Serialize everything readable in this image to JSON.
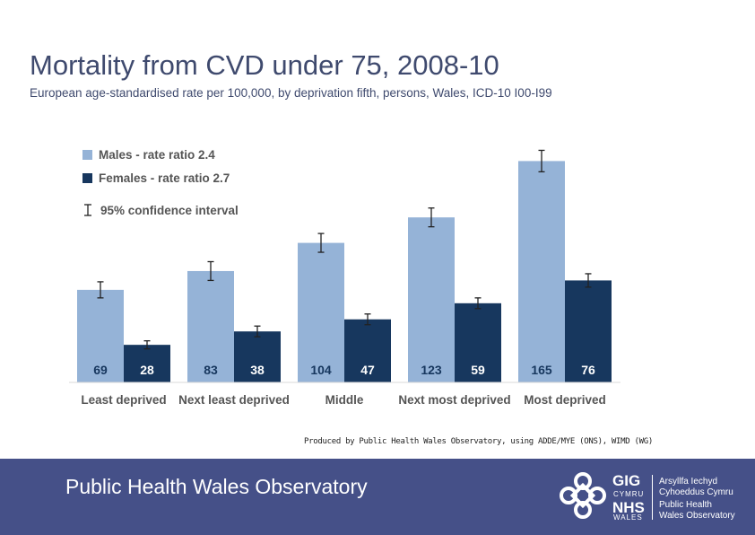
{
  "page": {
    "title": "Mortality from CVD under 75, 2008-10",
    "subtitle": "European  age-standardised rate per 100,000, by deprivation fifth, persons, Wales, ICD-10 I00-I99",
    "credit": "Produced by Public Health Wales Observatory, using ADDE/MYE (ONS), WIMD (WG)",
    "footer_title": "Public Health Wales Observatory",
    "logo": {
      "gig": "GIG",
      "cymru": "CYMRU",
      "nhs": "NHS",
      "wales": "WALES",
      "lines": [
        "Arsyllfa Iechyd",
        "Cyhoeddus Cymru",
        "Public Health",
        "Wales Observatory"
      ]
    }
  },
  "colors": {
    "males": "#95b3d7",
    "females": "#17375e",
    "footer": "#455088",
    "title": "#3f4a6e"
  },
  "chart_data": {
    "type": "bar",
    "categories": [
      "Least deprived",
      "Next least deprived",
      "Middle",
      "Next most deprived",
      "Most deprived"
    ],
    "series": [
      {
        "name": "Males - rate ratio 2.4",
        "values": [
          69,
          83,
          104,
          123,
          165
        ],
        "ci_low": [
          63,
          76,
          97,
          116,
          157
        ],
        "ci_high": [
          75,
          90,
          111,
          130,
          173
        ]
      },
      {
        "name": "Females - rate ratio 2.7",
        "values": [
          28,
          38,
          47,
          59,
          76
        ],
        "ci_low": [
          25,
          34,
          43,
          55,
          71
        ],
        "ci_high": [
          31,
          42,
          51,
          63,
          81
        ]
      }
    ],
    "ci_legend": "95% confidence interval",
    "legend_position": "top-left",
    "ylim": [
      0,
      180
    ],
    "grid": false,
    "data_labels": true
  }
}
